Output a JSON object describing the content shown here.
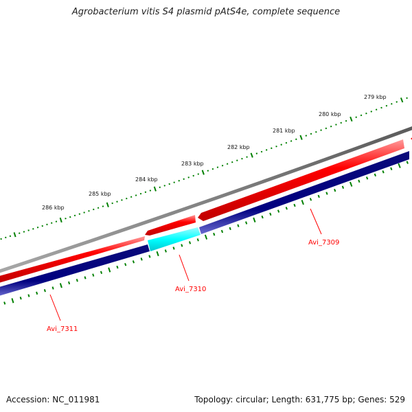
{
  "title": "Agrobacterium vitis S4 plasmid pAtS4e, complete sequence",
  "footer": {
    "accession": "Accession: NC_011981",
    "topology": "Topology: circular; Length: 631,775 bp; Genes: 529"
  },
  "colors": {
    "background": "#ffffff",
    "backbone": "#808080",
    "forward_gene": "#ff0000",
    "reverse_gene": "#000080",
    "highlight_gene": "#00ffff",
    "tick": "#008000",
    "gene_label": "#ff0000"
  },
  "scale_labels": [
    "279 kbp",
    "280 kbp",
    "281 kbp",
    "282 kbp",
    "283 kbp",
    "284 kbp",
    "285 kbp",
    "286 kbp"
  ],
  "genes": [
    {
      "name": "Avi_7309",
      "strand": "reverse",
      "kind": "reverse"
    },
    {
      "name": "Avi_7310",
      "strand": "reverse",
      "kind": "highlight"
    },
    {
      "name": "Avi_7311",
      "strand": "reverse",
      "kind": "reverse"
    }
  ]
}
